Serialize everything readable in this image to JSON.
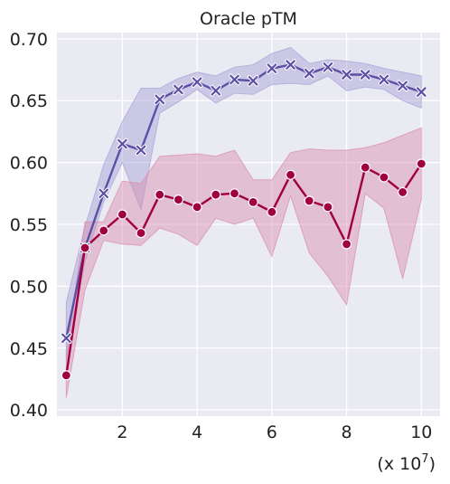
{
  "chart_data": {
    "type": "line",
    "title": "Oracle pTM",
    "x_unit_label": "(x 10",
    "x_unit_exponent": "7",
    "x_unit_close": ")",
    "xlim": [
      0.25,
      10.5
    ],
    "ylim": [
      0.395,
      0.705
    ],
    "x_ticks": [
      2,
      4,
      6,
      8,
      10
    ],
    "y_ticks": [
      0.4,
      0.45,
      0.5,
      0.55,
      0.6,
      0.65,
      0.7
    ],
    "y_tick_labels": [
      "0.40",
      "0.45",
      "0.50",
      "0.55",
      "0.60",
      "0.65",
      "0.70"
    ],
    "grid": true,
    "legend": "none",
    "series": [
      {
        "marker": "x",
        "color": "#5b4fa6",
        "band_color": "#a79fd6",
        "x": [
          0.5,
          1,
          1.5,
          2,
          2.5,
          3,
          3.5,
          4,
          4.5,
          5,
          5.5,
          6,
          6.5,
          7,
          7.5,
          8,
          8.5,
          9,
          9.5,
          10
        ],
        "y": [
          0.458,
          0.531,
          0.575,
          0.615,
          0.61,
          0.651,
          0.659,
          0.665,
          0.658,
          0.667,
          0.666,
          0.676,
          0.679,
          0.672,
          0.677,
          0.671,
          0.671,
          0.667,
          0.662,
          0.657
        ],
        "upper": [
          0.487,
          0.548,
          0.598,
          0.633,
          0.66,
          0.66,
          0.668,
          0.673,
          0.67,
          0.677,
          0.679,
          0.688,
          0.693,
          0.68,
          0.683,
          0.682,
          0.68,
          0.676,
          0.673,
          0.67
        ],
        "lower": [
          0.44,
          0.52,
          0.568,
          0.6,
          0.562,
          0.64,
          0.649,
          0.659,
          0.648,
          0.656,
          0.655,
          0.663,
          0.664,
          0.663,
          0.67,
          0.658,
          0.661,
          0.659,
          0.65,
          0.644
        ]
      },
      {
        "marker": "o",
        "color": "#a0003f",
        "band_color": "#d98cad",
        "x": [
          0.5,
          1,
          1.5,
          2,
          2.5,
          3,
          3.5,
          4,
          4.5,
          5,
          5.5,
          6,
          6.5,
          7,
          7.5,
          8,
          8.5,
          9,
          9.5,
          10
        ],
        "y": [
          0.428,
          0.531,
          0.545,
          0.558,
          0.543,
          0.574,
          0.57,
          0.564,
          0.574,
          0.575,
          0.568,
          0.56,
          0.59,
          0.569,
          0.564,
          0.534,
          0.596,
          0.588,
          0.576,
          0.599
        ],
        "upper": [
          0.445,
          0.552,
          0.552,
          0.585,
          0.583,
          0.605,
          0.606,
          0.607,
          0.605,
          0.61,
          0.586,
          0.586,
          0.608,
          0.611,
          0.61,
          0.61,
          0.612,
          0.616,
          0.622,
          0.628
        ],
        "lower": [
          0.41,
          0.497,
          0.537,
          0.534,
          0.533,
          0.547,
          0.542,
          0.533,
          0.555,
          0.55,
          0.555,
          0.524,
          0.573,
          0.527,
          0.508,
          0.485,
          0.575,
          0.563,
          0.506,
          0.57
        ]
      }
    ]
  }
}
